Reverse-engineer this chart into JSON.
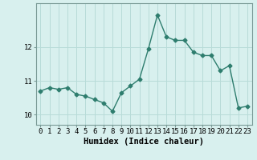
{
  "x": [
    0,
    1,
    2,
    3,
    4,
    5,
    6,
    7,
    8,
    9,
    10,
    11,
    12,
    13,
    14,
    15,
    16,
    17,
    18,
    19,
    20,
    21,
    22,
    23
  ],
  "y": [
    10.7,
    10.8,
    10.75,
    10.8,
    10.6,
    10.55,
    10.45,
    10.35,
    10.1,
    10.65,
    10.85,
    11.05,
    11.95,
    12.95,
    12.3,
    12.2,
    12.2,
    11.85,
    11.75,
    11.75,
    11.3,
    11.45,
    10.2,
    10.25
  ],
  "line_color": "#2e7d6e",
  "marker": "D",
  "markersize": 2.5,
  "linewidth": 1.0,
  "background_color": "#d8f0ee",
  "grid_color": "#b8dbd8",
  "xlabel": "Humidex (Indice chaleur)",
  "ylabel": "",
  "xlim": [
    -0.5,
    23.5
  ],
  "ylim": [
    9.7,
    13.3
  ],
  "yticks": [
    10,
    11,
    12
  ],
  "xticks": [
    0,
    1,
    2,
    3,
    4,
    5,
    6,
    7,
    8,
    9,
    10,
    11,
    12,
    13,
    14,
    15,
    16,
    17,
    18,
    19,
    20,
    21,
    22,
    23
  ],
  "xlabel_fontsize": 7.5,
  "tick_fontsize": 6.5
}
